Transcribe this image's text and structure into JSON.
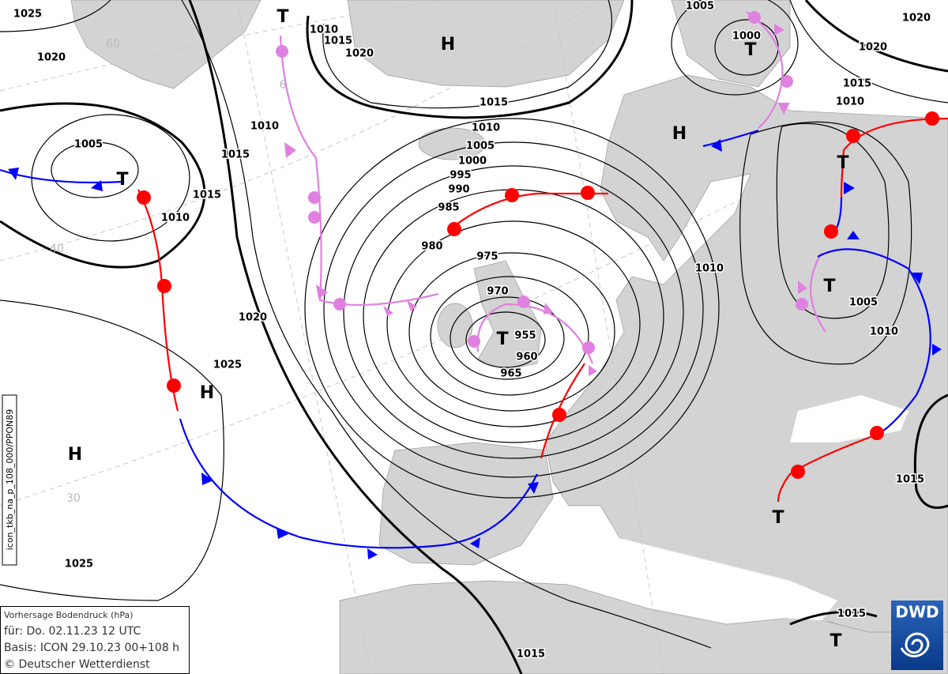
{
  "map": {
    "isobar_labels": [
      1025,
      1020,
      1005,
      1015,
      1010,
      1015,
      1010,
      1020,
      1025,
      1025,
      1010,
      1015,
      1020,
      1015,
      1010,
      1005,
      1000,
      995,
      990,
      985,
      980,
      975,
      970,
      955,
      960,
      965,
      1005,
      1000,
      1020,
      1020,
      1015,
      1010,
      1010,
      1005,
      1010,
      1015,
      1015,
      1015
    ],
    "grid_labels": [
      60,
      6,
      40,
      30
    ],
    "centers": [
      "T",
      "H",
      "T",
      "H",
      "T",
      "T",
      "T",
      "T",
      "H",
      "H",
      "T",
      "T"
    ],
    "info": {
      "title": "Vorhersage Bodendruck (hPa)",
      "valid": "für:  Do. 02.11.23  12 UTC",
      "basis": "Basis: ICON  29.10.23 00+108 h",
      "copyright": "© Deutscher Wetterdienst"
    },
    "product_code": "icon_tkb_na_p_108_000/PPON89",
    "logo": "DWD"
  }
}
